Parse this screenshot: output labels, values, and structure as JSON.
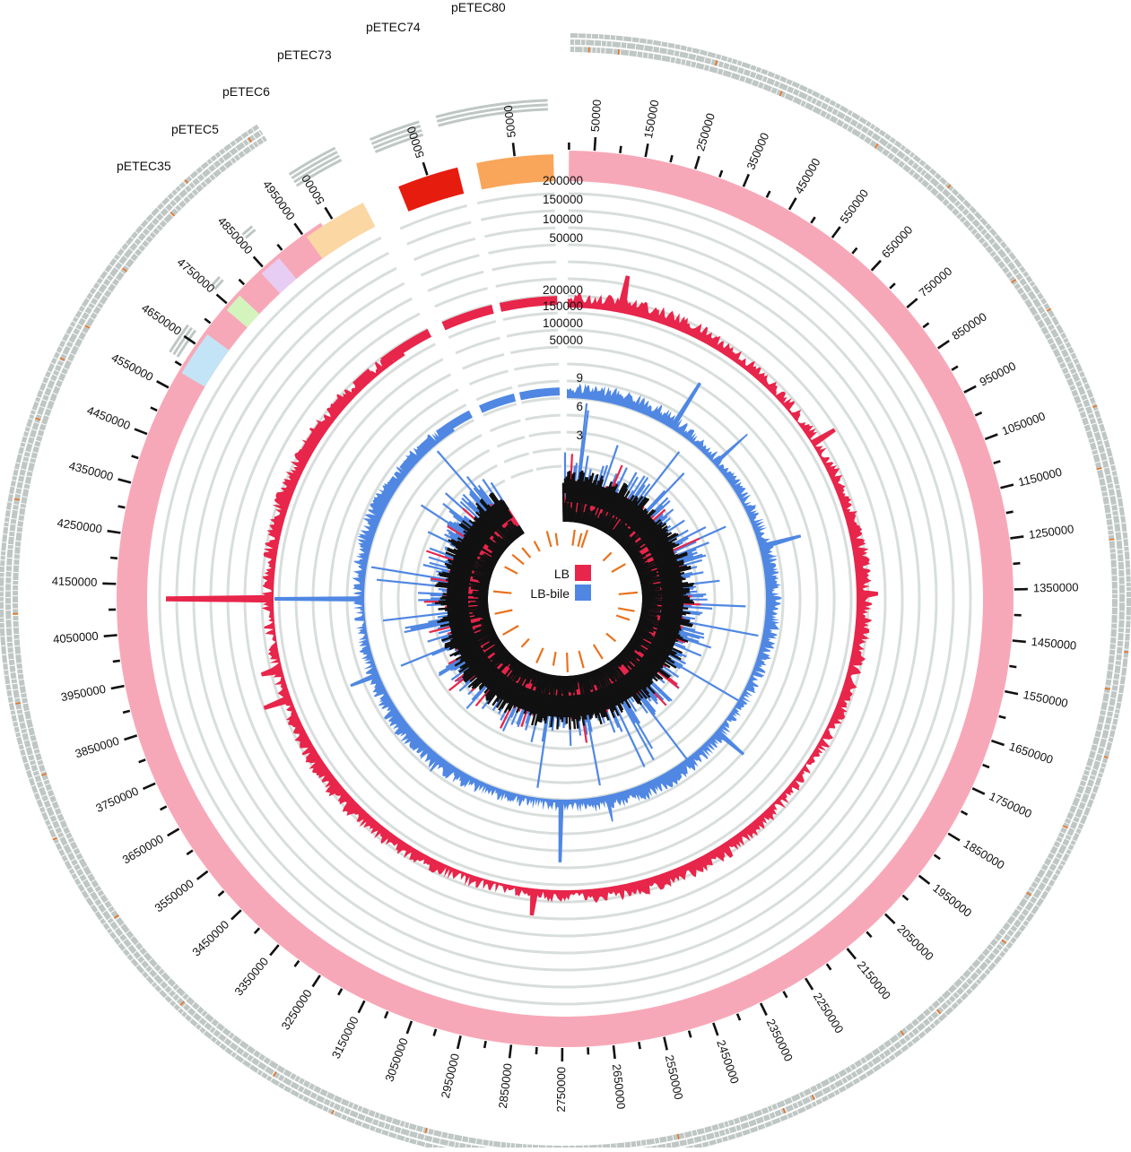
{
  "colors": {
    "background": "#ffffff",
    "chromosome": "#f7a8b8",
    "lb_track": "#e8254a",
    "lb_bile_track": "#4f87e3",
    "inner_black": "#111111",
    "grid": "#d8dedc",
    "feature_gray": "#bfc7c5",
    "feature_orange": "#e8721e",
    "tick": "#111111"
  },
  "chromosome": {
    "tick_labels": [
      "50000",
      "150000",
      "250000",
      "350000",
      "450000",
      "550000",
      "650000",
      "750000",
      "850000",
      "950000",
      "1050000",
      "1150000",
      "1250000",
      "1350000",
      "1450000",
      "1550000",
      "1650000",
      "1750000",
      "1850000",
      "1950000",
      "2050000",
      "2150000",
      "2250000",
      "2350000",
      "2450000",
      "2550000",
      "2650000",
      "2750000",
      "2850000",
      "2950000",
      "3050000",
      "3150000",
      "3250000",
      "3350000",
      "3450000",
      "3550000",
      "3650000",
      "3750000",
      "3850000",
      "3950000",
      "4050000",
      "4150000",
      "4250000",
      "4350000",
      "4450000",
      "4550000",
      "4650000",
      "4750000",
      "4850000",
      "4950000"
    ]
  },
  "plasmids": [
    {
      "name": "pETEC80",
      "color": "#f9a55a",
      "tick_label": "50000"
    },
    {
      "name": "pETEC74",
      "color": "#e61c0f",
      "tick_label": "50000"
    },
    {
      "name": "pETEC73",
      "color": "#fbd7a3",
      "tick_label": "50000"
    },
    {
      "name": "pETEC6",
      "color": "#e7cdf4",
      "tick_label": ""
    },
    {
      "name": "pETEC5",
      "color": "#d4f4be",
      "tick_label": ""
    },
    {
      "name": "pETEC35",
      "color": "#c3e4f7",
      "tick_label": ""
    }
  ],
  "scales": {
    "lb": [
      "200000",
      "150000",
      "100000",
      "50000"
    ],
    "lb_bile": [
      "200000",
      "150000",
      "100000",
      "50000"
    ],
    "inner": [
      "9",
      "6",
      "3"
    ]
  },
  "legend": [
    {
      "label": "LB",
      "color": "#e8254a"
    },
    {
      "label": "LB-bile",
      "color": "#4f87e3"
    }
  ]
}
